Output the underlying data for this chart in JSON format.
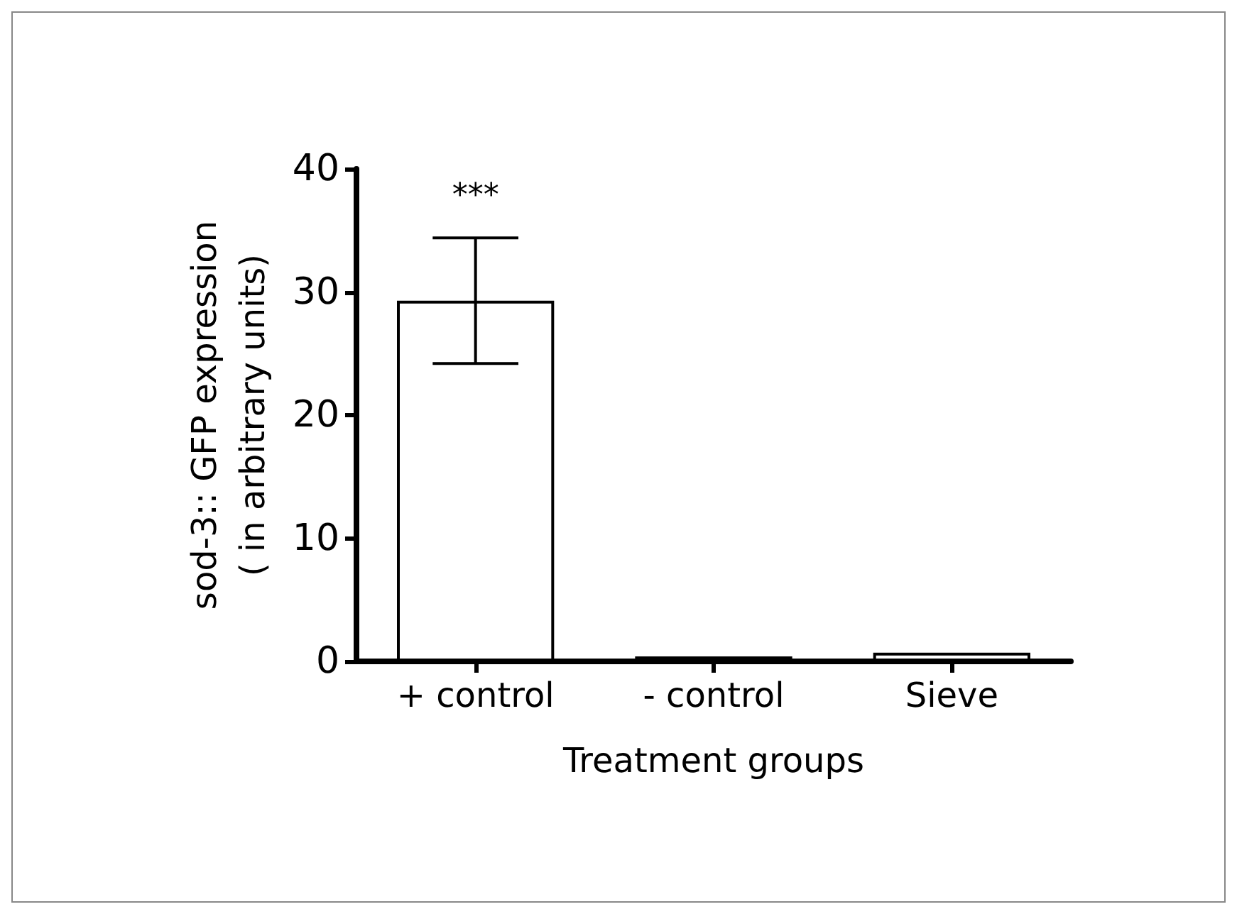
{
  "chart_data": {
    "type": "bar",
    "xlabel": "Treatment groups",
    "ylabel": "sod-3:: GFP expression\n( in arbitrary units)",
    "categories": [
      "+ control",
      "- control",
      "Sieve"
    ],
    "values": [
      29.3,
      0.4,
      0.7
    ],
    "colors": [
      "#ffffff",
      "#000000",
      "#ffffff"
    ],
    "errors": [
      5.1,
      null,
      null
    ],
    "ylim": [
      0,
      40
    ],
    "yticks": [
      0,
      10,
      20,
      30,
      40
    ],
    "grid": false,
    "annotations": [
      "***"
    ]
  }
}
